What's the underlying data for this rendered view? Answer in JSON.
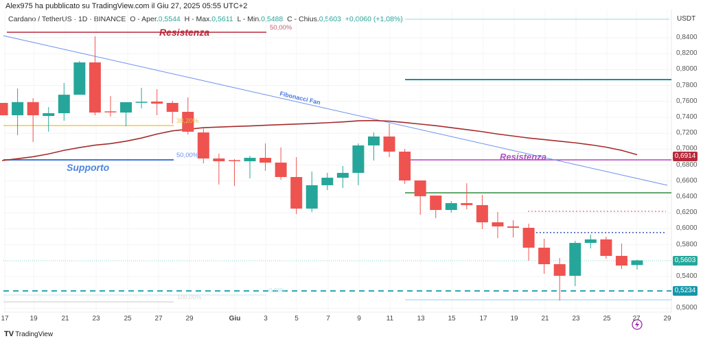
{
  "header": {
    "byline": "Alex975 ha pubblicato su TradingView.com il Giu 27, 2025 05:55 UTC+2",
    "symbol": "Cardano / TetherUS · 1D · BINANCE",
    "open_label": "O - Aper.",
    "open": "0,5544",
    "high_label": "H - Max.",
    "high": "0,5611",
    "low_label": "L - Min.",
    "low": "0,5488",
    "close_label": "C - Chius.",
    "close": "0,5603",
    "change": "+0,0060 (+1,08%)"
  },
  "price_axis": {
    "currency": "USDT",
    "labels": [
      "0,8400",
      "0,8200",
      "0,8000",
      "0,7800",
      "0,7600",
      "0,7400",
      "0,7200",
      "0,7000",
      "0,6800",
      "0,6600",
      "0,6400",
      "0,6200",
      "0,6000",
      "0,5800",
      "0,5400",
      "0,5000"
    ],
    "tags": [
      {
        "value": "0,6914",
        "color": "#b8283a"
      },
      {
        "value": "0,5603",
        "color": "#26a69a"
      },
      {
        "value": "0,5234",
        "color": "#1597a8"
      }
    ]
  },
  "time_axis": [
    "17",
    "19",
    "21",
    "23",
    "25",
    "27",
    "29",
    "Giu",
    "3",
    "5",
    "7",
    "9",
    "11",
    "13",
    "15",
    "17",
    "19",
    "21",
    "23",
    "25",
    "27",
    "29"
  ],
  "annotations": {
    "resistance_top": "Resistenza",
    "fib_top": "50,00%",
    "fib_382": "38,20%",
    "fib_50": "50,00%",
    "support": "Supporto",
    "fib_fan": "Fibonacci Fan",
    "resistance_right": "Resistenza",
    "fib_0": "0,00%",
    "fib_100": "100,00%"
  },
  "colors": {
    "up": "#26a69a",
    "down": "#ef5350",
    "ma": "#a52a2a"
  },
  "footer": {
    "logo": "TradingView"
  },
  "chart_data": {
    "type": "candlestick",
    "ylim": [
      0.5,
      0.85
    ],
    "candles": [
      [
        0.7581,
        0.7581,
        0.7426,
        0.7426
      ],
      [
        0.7426,
        0.7762,
        0.7176,
        0.7591
      ],
      [
        0.7591,
        0.7641,
        0.709,
        0.7426
      ],
      [
        0.7417,
        0.7529,
        0.7219,
        0.7452
      ],
      [
        0.7452,
        0.7831,
        0.7357,
        0.7684
      ],
      [
        0.7684,
        0.8107,
        0.7684,
        0.809
      ],
      [
        0.809,
        0.8417,
        0.7426,
        0.746
      ],
      [
        0.7475,
        0.7667,
        0.7409,
        0.7465
      ],
      [
        0.746,
        0.759,
        0.7288,
        0.759
      ],
      [
        0.759,
        0.7771,
        0.7512,
        0.7595
      ],
      [
        0.7598,
        0.7753,
        0.7426,
        0.7572
      ],
      [
        0.7581,
        0.7607,
        0.7322,
        0.7469
      ],
      [
        0.7469,
        0.765,
        0.7184,
        0.7219
      ],
      [
        0.721,
        0.7279,
        0.6822,
        0.6883
      ],
      [
        0.6883,
        0.6943,
        0.6555,
        0.6848
      ],
      [
        0.6862,
        0.6874,
        0.6538,
        0.6857
      ],
      [
        0.6848,
        0.6917,
        0.6633,
        0.6891
      ],
      [
        0.6891,
        0.7072,
        0.6728,
        0.6831
      ],
      [
        0.6831,
        0.7021,
        0.6616,
        0.665
      ],
      [
        0.665,
        0.69,
        0.6184,
        0.6253
      ],
      [
        0.6253,
        0.6719,
        0.621,
        0.6547
      ],
      [
        0.6547,
        0.6702,
        0.6486,
        0.6641
      ],
      [
        0.6641,
        0.6788,
        0.6512,
        0.6702
      ],
      [
        0.6702,
        0.7072,
        0.6547,
        0.7047
      ],
      [
        0.7047,
        0.721,
        0.6857,
        0.7159
      ],
      [
        0.7159,
        0.7322,
        0.69,
        0.6969
      ],
      [
        0.6969,
        0.7003,
        0.6564,
        0.6607
      ],
      [
        0.6607,
        0.6607,
        0.6176,
        0.6409
      ],
      [
        0.6417,
        0.6417,
        0.6133,
        0.6236
      ],
      [
        0.6236,
        0.6348,
        0.6202,
        0.6322
      ],
      [
        0.6322,
        0.6572,
        0.6245,
        0.6297
      ],
      [
        0.6297,
        0.6426,
        0.5995,
        0.6081
      ],
      [
        0.6081,
        0.621,
        0.5883,
        0.6029
      ],
      [
        0.6029,
        0.6107,
        0.5891,
        0.6012
      ],
      [
        0.6012,
        0.6064,
        0.5598,
        0.5762
      ],
      [
        0.5762,
        0.5874,
        0.5434,
        0.5555
      ],
      [
        0.5555,
        0.5633,
        0.5098,
        0.5409
      ],
      [
        0.5409,
        0.5848,
        0.5279,
        0.5822
      ],
      [
        0.5822,
        0.5926,
        0.5753,
        0.5866
      ],
      [
        0.5866,
        0.59,
        0.5624,
        0.5659
      ],
      [
        0.5659,
        0.5814,
        0.5495,
        0.5538
      ],
      [
        0.5544,
        0.5611,
        0.5488,
        0.5603
      ]
    ],
    "ma": [
      0.6857,
      0.688,
      0.6905,
      0.694,
      0.6985,
      0.702,
      0.705,
      0.707,
      0.71,
      0.714,
      0.719,
      0.723,
      0.725,
      0.727,
      0.7278,
      0.7285,
      0.7292,
      0.73,
      0.7308,
      0.7315,
      0.7323,
      0.7332,
      0.7342,
      0.7356,
      0.736,
      0.7352,
      0.7335,
      0.7315,
      0.7295,
      0.727,
      0.7245,
      0.722,
      0.719,
      0.7165,
      0.714,
      0.712,
      0.71,
      0.708,
      0.7055,
      0.7025,
      0.6985,
      0.693
    ]
  }
}
